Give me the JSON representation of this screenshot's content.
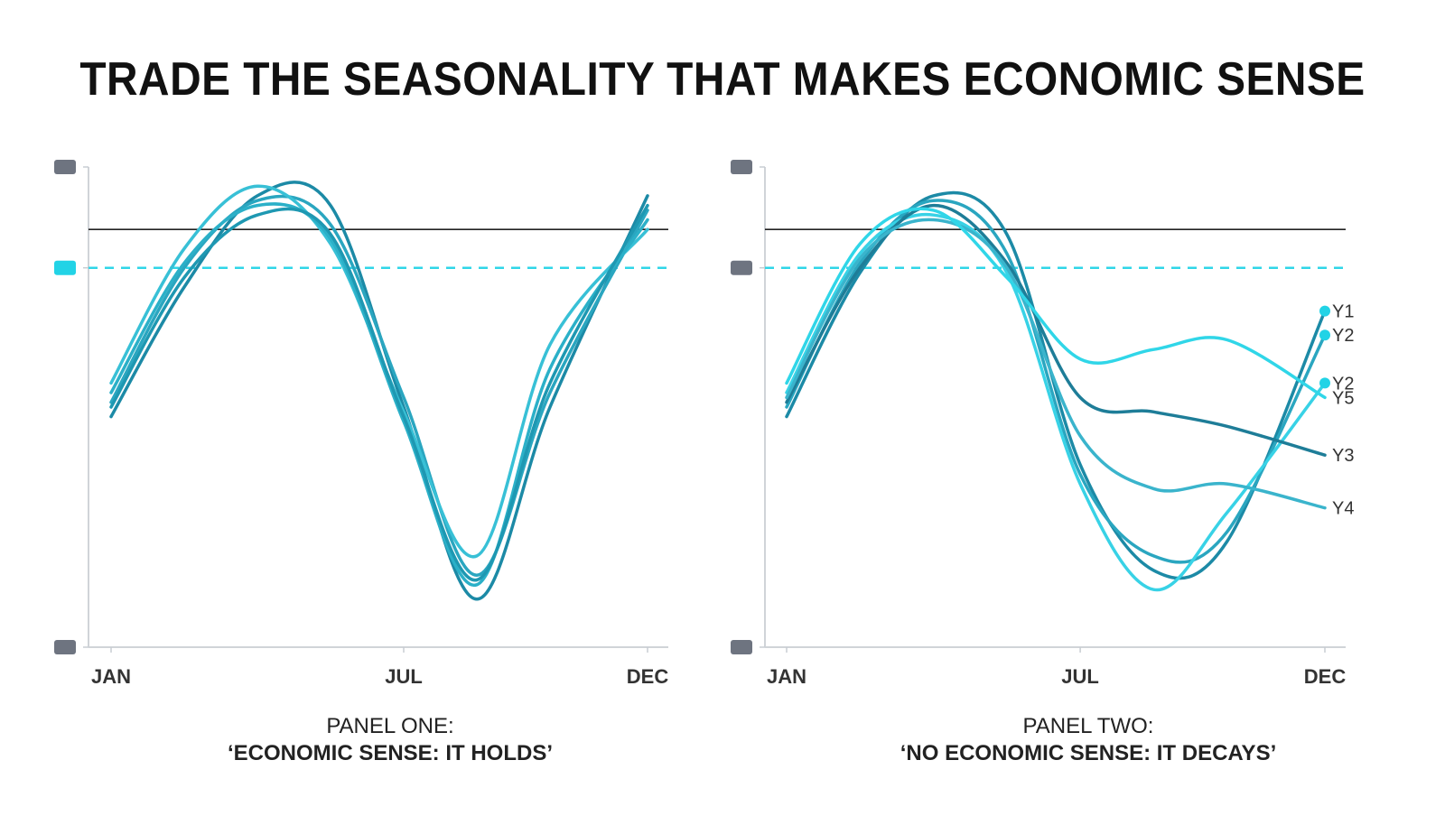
{
  "title": "TRADE THE SEASONALITY THAT MAKES ECONOMIC SENSE",
  "chart_data": [
    {
      "type": "line",
      "caption_line1": "PANEL ONE:",
      "caption_line2": "‘ECONOMIC SENSE: IT HOLDS’",
      "x_ticks": [
        "JAN",
        "JUL",
        "DEC"
      ],
      "x": [
        1,
        2.5,
        4,
        5.5,
        7,
        8.5,
        10,
        12
      ],
      "ylim": [
        0,
        100
      ],
      "threshold": 87,
      "dashed_level": 79,
      "series": [
        {
          "color": "#1c8aa6",
          "values": [
            48,
            75,
            94,
            92,
            50,
            10,
            50,
            94
          ]
        },
        {
          "color": "#2aa6c0",
          "values": [
            51,
            79,
            93,
            88,
            52,
            15,
            53,
            91
          ]
        },
        {
          "color": "#38c0d6",
          "values": [
            55,
            83,
            96,
            84,
            49,
            19,
            63,
            87
          ]
        },
        {
          "color": "#2bb0c8",
          "values": [
            53,
            80,
            92,
            85,
            47,
            13,
            58,
            89
          ]
        },
        {
          "color": "#1e98b2",
          "values": [
            50,
            77,
            90,
            86,
            48,
            14,
            55,
            92
          ]
        }
      ],
      "y_markers": [
        "#6e7480",
        "#22d3e6",
        "#6e7480"
      ]
    },
    {
      "type": "line",
      "caption_line1": "PANEL TWO:",
      "caption_line2": "‘NO ECONOMIC SENSE: IT DECAYS’",
      "x_ticks": [
        "JAN",
        "JUL",
        "DEC"
      ],
      "x": [
        1,
        2.5,
        4,
        5.5,
        7,
        8.5,
        10,
        12
      ],
      "ylim": [
        0,
        100
      ],
      "threshold": 87,
      "dashed_level": 79,
      "series": [
        {
          "label": "Y1",
          "color": "#1c8aa6",
          "end_marker": true,
          "values": [
            48,
            78,
            94,
            86,
            38,
            16,
            22,
            70
          ]
        },
        {
          "label": "Y2",
          "color": "#2aa6c0",
          "end_marker": true,
          "values": [
            50,
            80,
            93,
            82,
            36,
            19,
            24,
            65
          ]
        },
        {
          "label": "Y2",
          "color": "#38d2e6",
          "end_marker": true,
          "values": [
            53,
            82,
            90,
            78,
            34,
            12,
            28,
            55
          ]
        },
        {
          "label": "Y3",
          "color": "#1e7d98",
          "values": [
            51,
            79,
            92,
            80,
            52,
            49,
            46,
            40
          ]
        },
        {
          "label": "Y4",
          "color": "#3ab4cc",
          "values": [
            52,
            81,
            89,
            79,
            44,
            33,
            34,
            29
          ]
        },
        {
          "label": "Y5",
          "color": "#30d6e8",
          "values": [
            55,
            84,
            91,
            77,
            60,
            62,
            64,
            52
          ]
        }
      ],
      "y_markers": [
        "#6e7480",
        "#6e7480",
        "#6e7480"
      ]
    }
  ]
}
